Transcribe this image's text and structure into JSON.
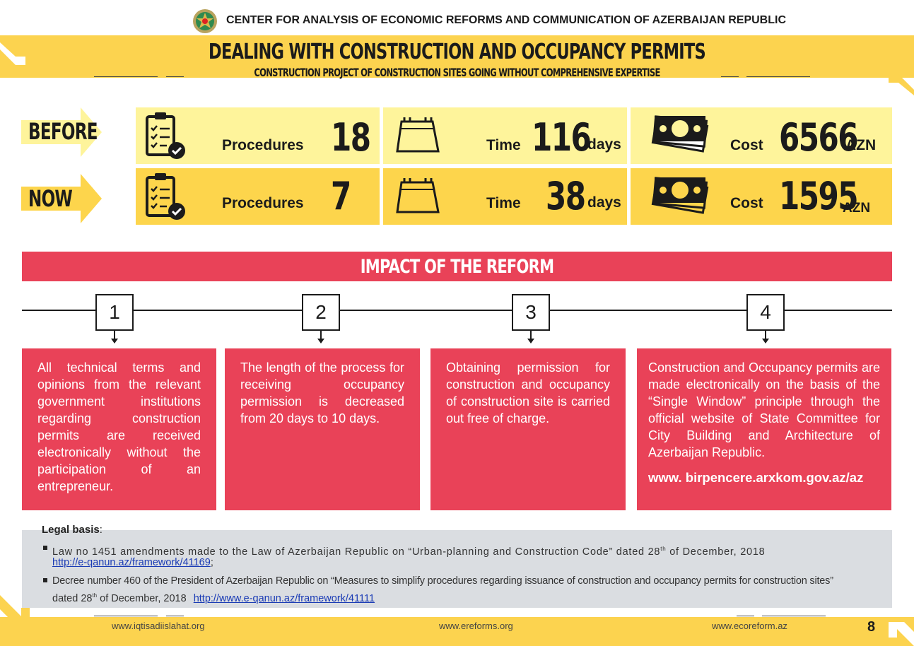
{
  "header": {
    "org": "CENTER FOR ANALYSIS OF ECONOMIC REFORMS AND COMMUNICATION OF AZERBAIJAN REPUBLIC"
  },
  "title": {
    "main": "DEALING WITH CONSTRUCTION AND OCCUPANCY PERMITS",
    "sub": "CONSTRUCTION PROJECT OF CONSTRUCTION SITES GOING WITHOUT COMPREHENSIVE EXPERTISE"
  },
  "comparison": {
    "before": {
      "label": "BEFORE",
      "procedures_label": "Procedures",
      "procedures": "18",
      "time_label": "Time",
      "time": "116",
      "time_unit": "days",
      "cost_label": "Cost",
      "cost": "6566",
      "cost_unit": "AZN"
    },
    "now": {
      "label": "NOW",
      "procedures_label": "Procedures",
      "procedures": "7",
      "time_label": "Time",
      "time": "38",
      "time_unit": "days",
      "cost_label": "Cost",
      "cost": "1595",
      "cost_unit": "AZN"
    }
  },
  "impact": {
    "title": "IMPACT OF THE REFORM",
    "steps": [
      {
        "num": "1",
        "text": "All technical terms and opinions from the relevant government institutions regarding construction permits are received electronically without the participation of an entrepreneur."
      },
      {
        "num": "2",
        "text": "The length of the process for receiving occupancy permission is decreased from 20 days to 10 days."
      },
      {
        "num": "3",
        "text": "Obtaining permission for construction and occupancy of construction site is carried out free of charge."
      },
      {
        "num": "4",
        "text": "Construction and Occupancy permits are made electronically on the basis of the “Single Window” principle through the official website of State Committee for City Building and Architecture of Azerbaijan Republic.",
        "url": "www. birpencere.arxkom.gov.az/az"
      }
    ]
  },
  "legal": {
    "heading": "Legal basis",
    "colon": ":",
    "items": [
      {
        "text_a": "Law no 1451 amendments made to the Law of Azerbaijan Republic on “Urban-planning and Construction Code” dated 28",
        "sup": "th",
        "text_b": " of December, 2018",
        "link": "http://e-qanun.az/framework/41169",
        "tail": ";"
      },
      {
        "text_a": "Decree number 460 of the President of Azerbaijan Republic on “Measures to simplify procedures regarding issuance of construction and occupancy permits for construction sites”",
        "text_c": "dated 28",
        "sup": "th",
        "text_b": " of December, 2018",
        "link": "http://www.e-qanun.az/framework/41111"
      }
    ]
  },
  "footer": {
    "site1": "www.iqtisadiislahat.org",
    "site2": "www.ereforms.org",
    "site3": "www.ecoreform.az",
    "page": "8"
  },
  "colors": {
    "yellow": "#fcd34f",
    "light_yellow": "#fef49b",
    "red": "#e94258",
    "grey": "#dadde1"
  }
}
